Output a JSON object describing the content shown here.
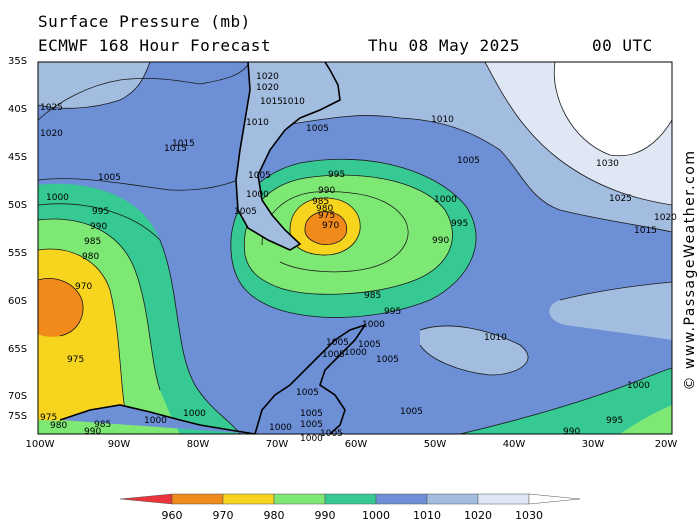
{
  "header": {
    "title": "Surface Pressure (mb)",
    "model": "ECMWF 168 Hour Forecast",
    "date": "Thu 08 May 2025",
    "time": "00 UTC"
  },
  "credit": "© www.PassageWeather.com",
  "axes": {
    "lat_labels": [
      "35S",
      "40S",
      "45S",
      "50S",
      "55S",
      "60S",
      "65S",
      "70S",
      "75S"
    ],
    "lon_labels": [
      "100W",
      "90W",
      "80W",
      "70W",
      "60W",
      "50W",
      "40W",
      "30W",
      "20W"
    ]
  },
  "legend": {
    "ticks": [
      "960",
      "970",
      "980",
      "990",
      "1000",
      "1010",
      "1020",
      "1030"
    ],
    "colors": [
      "#e8343a",
      "#f08a1a",
      "#f7d51f",
      "#7ee874",
      "#36c993",
      "#6c8fd6",
      "#a3bde0",
      "#dfe7f5",
      "#ffffff"
    ]
  },
  "isobar_labels": {
    "top_left": [
      "1015",
      "1015",
      "1005",
      "1000",
      "995",
      "990",
      "985",
      "980",
      "970",
      "975"
    ],
    "center": [
      "1020",
      "1020",
      "1015",
      "1010",
      "1010",
      "1005",
      "1005",
      "1000",
      "1005",
      "995",
      "990",
      "985",
      "980",
      "975",
      "970",
      "1000",
      "995",
      "990",
      "985",
      "995"
    ],
    "east": [
      "1010",
      "1005",
      "1030",
      "1025",
      "1015",
      "1020",
      "1010"
    ],
    "antarctic": [
      "1000",
      "1005",
      "1005",
      "1005",
      "1005",
      "1000",
      "1005",
      "1005",
      "1005",
      "1005",
      "1000",
      "1000",
      "995",
      "990",
      "1000",
      "1005",
      "1000",
      "1000"
    ],
    "left_edge": [
      "1025",
      "1020",
      "975",
      "980",
      "985",
      "990"
    ]
  }
}
